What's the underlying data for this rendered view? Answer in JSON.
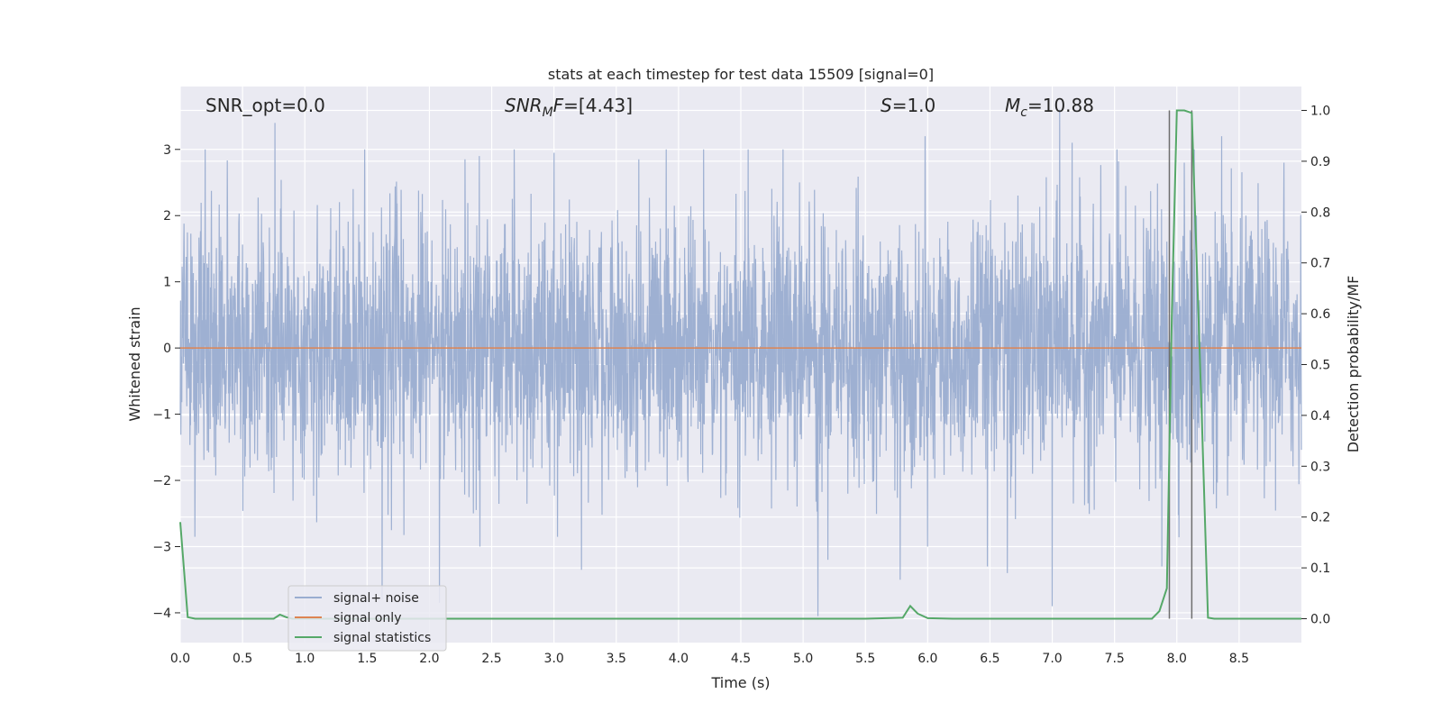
{
  "chart_data": {
    "type": "line",
    "title": "stats at each timestep for test data 15509 [signal=0]",
    "xlabel": "Time (s)",
    "ylabel": "Whitened strain",
    "ylabel_right": "Detection probability/MF",
    "xlim": [
      0.0,
      9.0
    ],
    "ylim": [
      -4.45,
      3.95
    ],
    "ylim_right": [
      -0.047,
      1.047
    ],
    "grid": true,
    "legend_position": "lower-left",
    "x_ticks": [
      "0.0",
      "0.5",
      "1.0",
      "1.5",
      "2.0",
      "2.5",
      "3.0",
      "3.5",
      "4.0",
      "4.5",
      "5.0",
      "5.5",
      "6.0",
      "6.5",
      "7.0",
      "7.5",
      "8.0",
      "8.5"
    ],
    "y_ticks": [
      "3",
      "2",
      "1",
      "0",
      "−1",
      "−2",
      "−3",
      "−4"
    ],
    "y_ticks_right": [
      "1.0",
      "0.9",
      "0.8",
      "0.7",
      "0.6",
      "0.5",
      "0.4",
      "0.3",
      "0.2",
      "0.1",
      "0.0"
    ],
    "annotations": {
      "snr_opt": "SNR_opt=0.0",
      "snr_mf_sym": "SNR",
      "snr_mf_sub": "M",
      "snr_mf_rest": "F",
      "snr_mf_val": "=[4.43]",
      "s_sym": "S",
      "s_val": "=1.0",
      "mc_sym": "M",
      "mc_sub": "c",
      "mc_val": "=10.88"
    },
    "vertical_lines_x": [
      7.94,
      8.12
    ],
    "series": [
      {
        "name": "signal+ noise",
        "color": "#9aadd0",
        "description_values": "whitened noise, approx. range -3.9 to 3.4 with mean 0",
        "peaks_x": [
          0.2,
          0.76,
          1.48,
          1.62,
          2.08,
          2.4,
          2.68,
          3.0,
          3.22,
          3.9,
          4.2,
          4.56,
          4.84,
          5.12,
          5.2,
          5.78,
          5.98,
          6.48,
          6.64,
          7.0,
          7.06,
          7.16,
          7.52,
          7.88,
          8.06,
          8.14,
          8.36,
          8.86
        ],
        "peaks_y": [
          3.0,
          3.4,
          3.0,
          -3.8,
          -3.85,
          2.9,
          3.0,
          2.95,
          -3.35,
          3.0,
          3.0,
          3.0,
          3.0,
          -4.05,
          -3.2,
          -3.5,
          3.2,
          -3.3,
          -3.4,
          -3.9,
          3.6,
          3.1,
          3.0,
          -3.3,
          2.8,
          3.0,
          3.2,
          2.8
        ]
      },
      {
        "name": "signal only",
        "color": "#dd8452",
        "x": [
          0.0,
          9.0
        ],
        "y": [
          0.0,
          0.0
        ]
      },
      {
        "name": "signal statistics",
        "color": "#55a868",
        "axis": "right",
        "x": [
          0.0,
          0.06,
          0.12,
          0.2,
          0.4,
          0.6,
          0.75,
          0.8,
          0.85,
          0.9,
          1.0,
          1.2,
          1.5,
          1.8,
          2.0,
          2.5,
          3.0,
          3.5,
          4.0,
          4.5,
          5.0,
          5.5,
          5.8,
          5.86,
          5.92,
          6.0,
          6.2,
          6.5,
          7.0,
          7.5,
          7.8,
          7.86,
          7.92,
          7.96,
          8.0,
          8.06,
          8.12,
          8.2,
          8.25,
          8.3,
          8.5,
          8.8,
          9.0
        ],
        "y": [
          0.19,
          0.003,
          0.0,
          0.0,
          0.0,
          0.0,
          0.0,
          0.008,
          0.003,
          0.0,
          0.0,
          0.0,
          0.0,
          0.0,
          0.0,
          0.0,
          0.0,
          0.0,
          0.0,
          0.0,
          0.0,
          0.0,
          0.002,
          0.025,
          0.01,
          0.001,
          0.0,
          0.0,
          0.0,
          0.0,
          0.0,
          0.015,
          0.06,
          0.6,
          1.0,
          1.0,
          0.995,
          0.4,
          0.002,
          0.0,
          0.0,
          0.0,
          0.0
        ]
      }
    ]
  }
}
